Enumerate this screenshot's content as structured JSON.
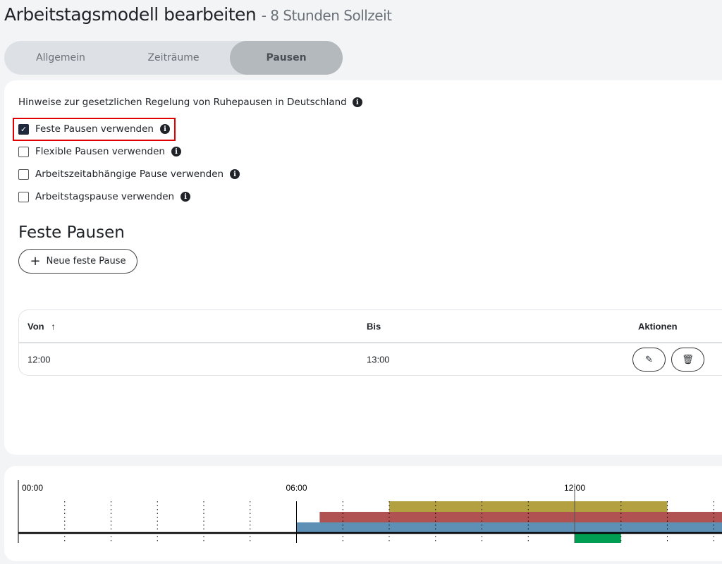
{
  "header": {
    "title": "Arbeitstagsmodell bearbeiten",
    "subtitle": "- 8 Stunden Sollzeit"
  },
  "tabs": [
    {
      "label": "Allgemein",
      "active": false
    },
    {
      "label": "Zeiträume",
      "active": false
    },
    {
      "label": "Pausen",
      "active": true
    }
  ],
  "hint": "Hinweise zur gesetzlichen Regelung von Ruhepausen in Deutschland",
  "options": [
    {
      "label": "Feste Pausen verwenden",
      "checked": true
    },
    {
      "label": "Flexible Pausen verwenden",
      "checked": false
    },
    {
      "label": "Arbeitszeitabhängige Pause verwenden",
      "checked": false
    },
    {
      "label": "Arbeitstagspause verwenden",
      "checked": false
    }
  ],
  "section_title": "Feste Pausen",
  "new_button": "Neue feste Pause",
  "table": {
    "columns": [
      "Von",
      "Bis",
      "Aktionen"
    ],
    "rows": [
      {
        "von": "12:00",
        "bis": "13:00"
      }
    ]
  },
  "timeline": {
    "labels": [
      "00:00",
      "06:00",
      "12:00"
    ],
    "bars": [
      {
        "from": "08:00",
        "to": "14:00",
        "color": "#b3a040"
      },
      {
        "from": "06:30",
        "to": "24:00",
        "color": "#b05252"
      },
      {
        "from": "06:00",
        "to": "24:00",
        "color": "#5e8fb5"
      },
      {
        "from": "12:00",
        "to": "13:00",
        "color": "#009e52"
      }
    ]
  }
}
